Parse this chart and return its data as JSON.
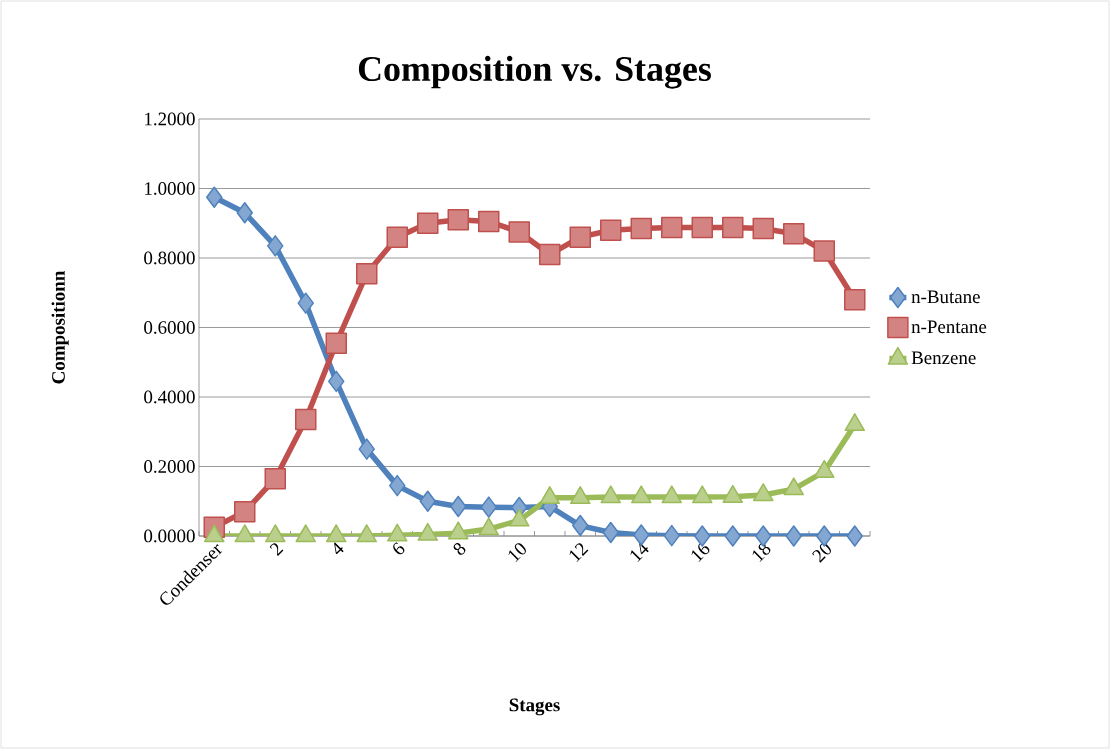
{
  "chart_data": {
    "type": "line",
    "title": "Composition vs. Stages",
    "xlabel": "Stages",
    "ylabel": "Compositionn",
    "categories": [
      "Condenser",
      null,
      "2",
      null,
      "4",
      null,
      "6",
      null,
      "8",
      null,
      "10",
      null,
      "12",
      null,
      "14",
      null,
      "16",
      null,
      "18",
      null,
      "20",
      null
    ],
    "series": [
      {
        "name": "n-Butane",
        "color": "#4f81bd",
        "marker": "diamond",
        "values": [
          0.975,
          0.93,
          0.835,
          0.67,
          0.445,
          0.25,
          0.145,
          0.1,
          0.085,
          0.083,
          0.082,
          0.085,
          0.03,
          0.01,
          0.003,
          0.001,
          0,
          0,
          0,
          0,
          0,
          0
        ]
      },
      {
        "name": "n-Pentane",
        "color": "#c0504d",
        "marker": "square",
        "values": [
          0.025,
          0.07,
          0.165,
          0.335,
          0.555,
          0.755,
          0.86,
          0.9,
          0.91,
          0.905,
          0.875,
          0.81,
          0.86,
          0.88,
          0.885,
          0.888,
          0.888,
          0.888,
          0.885,
          0.87,
          0.82,
          0.68
        ]
      },
      {
        "name": "Benzene",
        "color": "#9bbb59",
        "marker": "triangle",
        "values": [
          0,
          0,
          0,
          0,
          0,
          0,
          0.002,
          0.004,
          0.008,
          0.02,
          0.045,
          0.11,
          0.11,
          0.112,
          0.112,
          0.112,
          0.112,
          0.113,
          0.118,
          0.135,
          0.185,
          0.32
        ]
      }
    ],
    "ylim": [
      0,
      1.2
    ],
    "yticks": [
      {
        "value": 0,
        "label": "0.0000"
      },
      {
        "value": 0.2,
        "label": "0.2000"
      },
      {
        "value": 0.4,
        "label": "0.4000"
      },
      {
        "value": 0.6,
        "label": "0.6000"
      },
      {
        "value": 0.8,
        "label": "0.8000"
      },
      {
        "value": 1.0,
        "label": "1.0000"
      },
      {
        "value": 1.2,
        "label": "1.2000"
      }
    ],
    "grid": "y",
    "legend": "right"
  }
}
